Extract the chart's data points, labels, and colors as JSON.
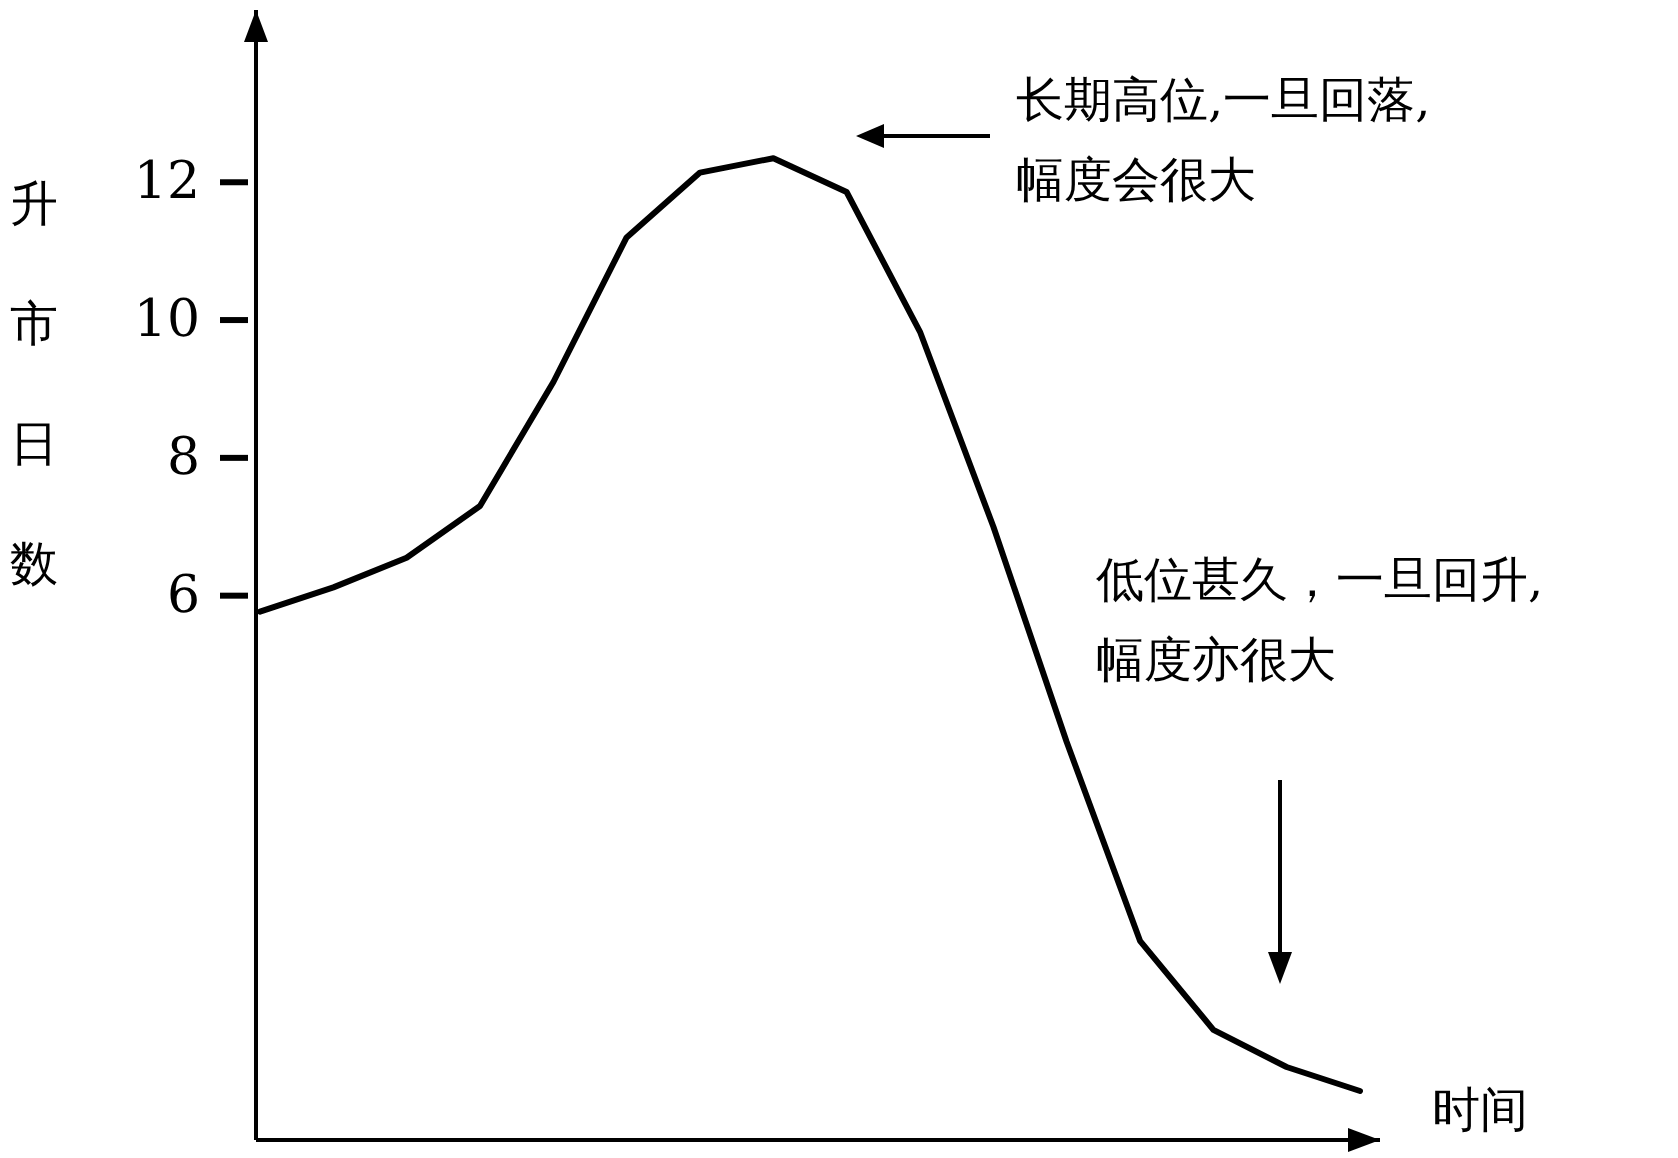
{
  "chart_data": {
    "type": "line",
    "ylabel": "升市日数",
    "xlabel": "时间",
    "color": "#000000",
    "categories": [
      null,
      null,
      null,
      null,
      null,
      null,
      null,
      null,
      null,
      null,
      null,
      null,
      null,
      null,
      null,
      null
    ],
    "values": [
      5.77,
      6.12,
      6.55,
      7.3,
      9.1,
      11.2,
      12.14,
      12.35,
      11.86,
      9.83,
      7.0,
      3.88,
      0.99,
      -0.3,
      -0.84,
      -1.19
    ],
    "ylim": [
      -1.9,
      14.5
    ],
    "yticks": [
      6,
      8,
      10,
      12
    ],
    "tick_labels": "y",
    "annotations": [
      "长期高位,一旦回落,幅度会很大",
      "低位甚久，一旦回升,幅度亦很大"
    ]
  }
}
